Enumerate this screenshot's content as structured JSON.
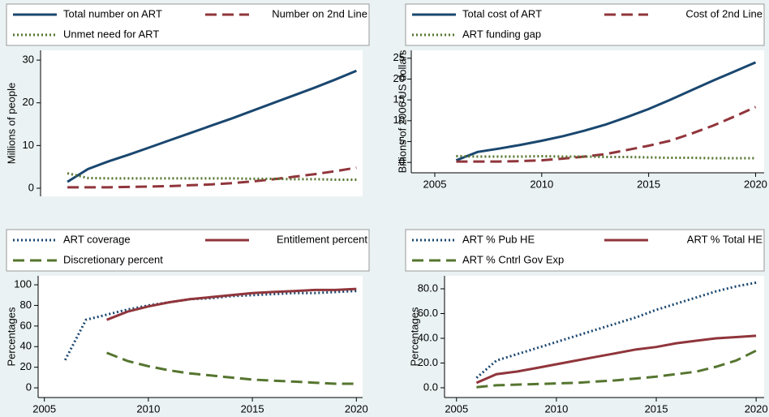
{
  "chart_data": [
    {
      "type": "line",
      "x": [
        2006,
        2007,
        2008,
        2009,
        2010,
        2011,
        2012,
        2013,
        2014,
        2015,
        2016,
        2017,
        2018,
        2019,
        2020
      ],
      "xlim": [
        2004.7,
        2020.3
      ],
      "ylim": [
        -1.9,
        32.3
      ],
      "yticks": [
        0,
        10,
        20,
        30
      ],
      "y_label": "Millions of people",
      "series": [
        {
          "name": "Total number on ART",
          "color": "#1a476f",
          "style": "solid",
          "values": [
            1.5,
            4.5,
            6.3,
            7.9,
            9.6,
            11.3,
            13.0,
            14.7,
            16.4,
            18.2,
            20.0,
            21.8,
            23.6,
            25.5,
            27.5
          ]
        },
        {
          "name": "Number on 2nd Line",
          "color": "#90353b",
          "style": "dash",
          "values": [
            0.2,
            0.2,
            0.2,
            0.3,
            0.4,
            0.5,
            0.7,
            0.9,
            1.2,
            1.6,
            2.1,
            2.7,
            3.3,
            4.0,
            4.8
          ]
        },
        {
          "name": "Unmet need for ART",
          "color": "#55752f",
          "style": "dot",
          "values": [
            3.5,
            2.4,
            2.3,
            2.3,
            2.3,
            2.3,
            2.3,
            2.3,
            2.3,
            2.2,
            2.2,
            2.1,
            2.1,
            2.0,
            2.0
          ]
        }
      ]
    },
    {
      "type": "line",
      "x": [
        2006,
        2007,
        2008,
        2009,
        2010,
        2011,
        2012,
        2013,
        2014,
        2015,
        2016,
        2017,
        2018,
        2019,
        2020
      ],
      "xlim": [
        2003.9,
        2020.4
      ],
      "xticks": [
        2005,
        2010,
        2015,
        2020
      ],
      "ylim": [
        -2.5,
        26.9
      ],
      "yticks": [
        0,
        5,
        10,
        15,
        20,
        25
      ],
      "y_label": "Billions of 2006 US dollars",
      "series": [
        {
          "name": "Total cost of ART",
          "color": "#1a476f",
          "style": "solid",
          "values": [
            0.5,
            2.5,
            3.3,
            4.2,
            5.2,
            6.3,
            7.6,
            9.1,
            10.9,
            12.8,
            15.0,
            17.3,
            19.6,
            21.8,
            24.0
          ]
        },
        {
          "name": "Cost of 2nd Line",
          "color": "#90353b",
          "style": "dash",
          "values": [
            0.2,
            0.2,
            0.2,
            0.3,
            0.5,
            0.9,
            1.4,
            2.0,
            3.0,
            4.0,
            5.2,
            6.9,
            8.8,
            11.0,
            13.3
          ]
        },
        {
          "name": "ART funding gap",
          "color": "#55752f",
          "style": "dot",
          "values": [
            1.5,
            1.4,
            1.4,
            1.4,
            1.5,
            1.4,
            1.4,
            1.3,
            1.3,
            1.2,
            1.1,
            1.1,
            1.0,
            1.0,
            1.0
          ]
        }
      ]
    },
    {
      "type": "line",
      "x": [
        2006,
        2007,
        2008,
        2009,
        2010,
        2011,
        2012,
        2013,
        2014,
        2015,
        2016,
        2017,
        2018,
        2019,
        2020
      ],
      "xlim": [
        2004.7,
        2020.3
      ],
      "xticks": [
        2005,
        2010,
        2015,
        2020
      ],
      "ylim": [
        -9.4,
        108.7
      ],
      "yticks": [
        0,
        20,
        40,
        60,
        80,
        100
      ],
      "y_label": "Percentages",
      "series": [
        {
          "name": "ART coverage",
          "color": "#1a476f",
          "style": "dot",
          "values": [
            27,
            66,
            71,
            76,
            80,
            83,
            86,
            87,
            89,
            90,
            91,
            92,
            92,
            93,
            94
          ]
        },
        {
          "name": "Entitlement percent",
          "color": "#90353b",
          "style": "solid",
          "values": [
            null,
            null,
            66,
            74,
            79,
            83,
            86,
            88,
            90,
            92,
            93,
            94,
            95,
            95,
            96
          ]
        },
        {
          "name": "Discretionary percent",
          "color": "#55752f",
          "style": "dash",
          "values": [
            null,
            null,
            34,
            26,
            21,
            17,
            14,
            12,
            10,
            8,
            7,
            6,
            5,
            4,
            4
          ]
        }
      ]
    },
    {
      "type": "line",
      "x": [
        2006,
        2007,
        2008,
        2009,
        2010,
        2011,
        2012,
        2013,
        2014,
        2015,
        2016,
        2017,
        2018,
        2019,
        2020
      ],
      "xlim": [
        2004.4,
        2020.4
      ],
      "xticks": [
        2005,
        2010,
        2015,
        2020
      ],
      "ylim": [
        -7.9,
        90.5
      ],
      "yticks": [
        {
          "value": 0,
          "label": "0.0"
        },
        {
          "value": 20,
          "label": "20.0"
        },
        {
          "value": 40,
          "label": "40.0"
        },
        {
          "value": 60,
          "label": "60.0"
        },
        {
          "value": 80,
          "label": "80.0"
        }
      ],
      "y_label": "Percentages",
      "series": [
        {
          "name": "ART % Pub HE",
          "color": "#1a476f",
          "style": "dot",
          "values": [
            8,
            22,
            27,
            32,
            37,
            42,
            47,
            52,
            57,
            63,
            68,
            73,
            78,
            82,
            85
          ]
        },
        {
          "name": "ART % Total HE",
          "color": "#90353b",
          "style": "solid",
          "values": [
            4,
            11,
            13,
            16,
            19,
            22,
            25,
            28,
            31,
            33,
            36,
            38,
            40,
            41,
            42
          ]
        },
        {
          "name": "ART % Cntrl Gov Exp",
          "color": "#55752f",
          "style": "dash",
          "values": [
            0.5,
            2,
            2.5,
            3,
            3.5,
            4,
            5,
            6,
            7.5,
            9,
            11,
            13,
            17,
            22,
            30
          ]
        }
      ]
    }
  ]
}
